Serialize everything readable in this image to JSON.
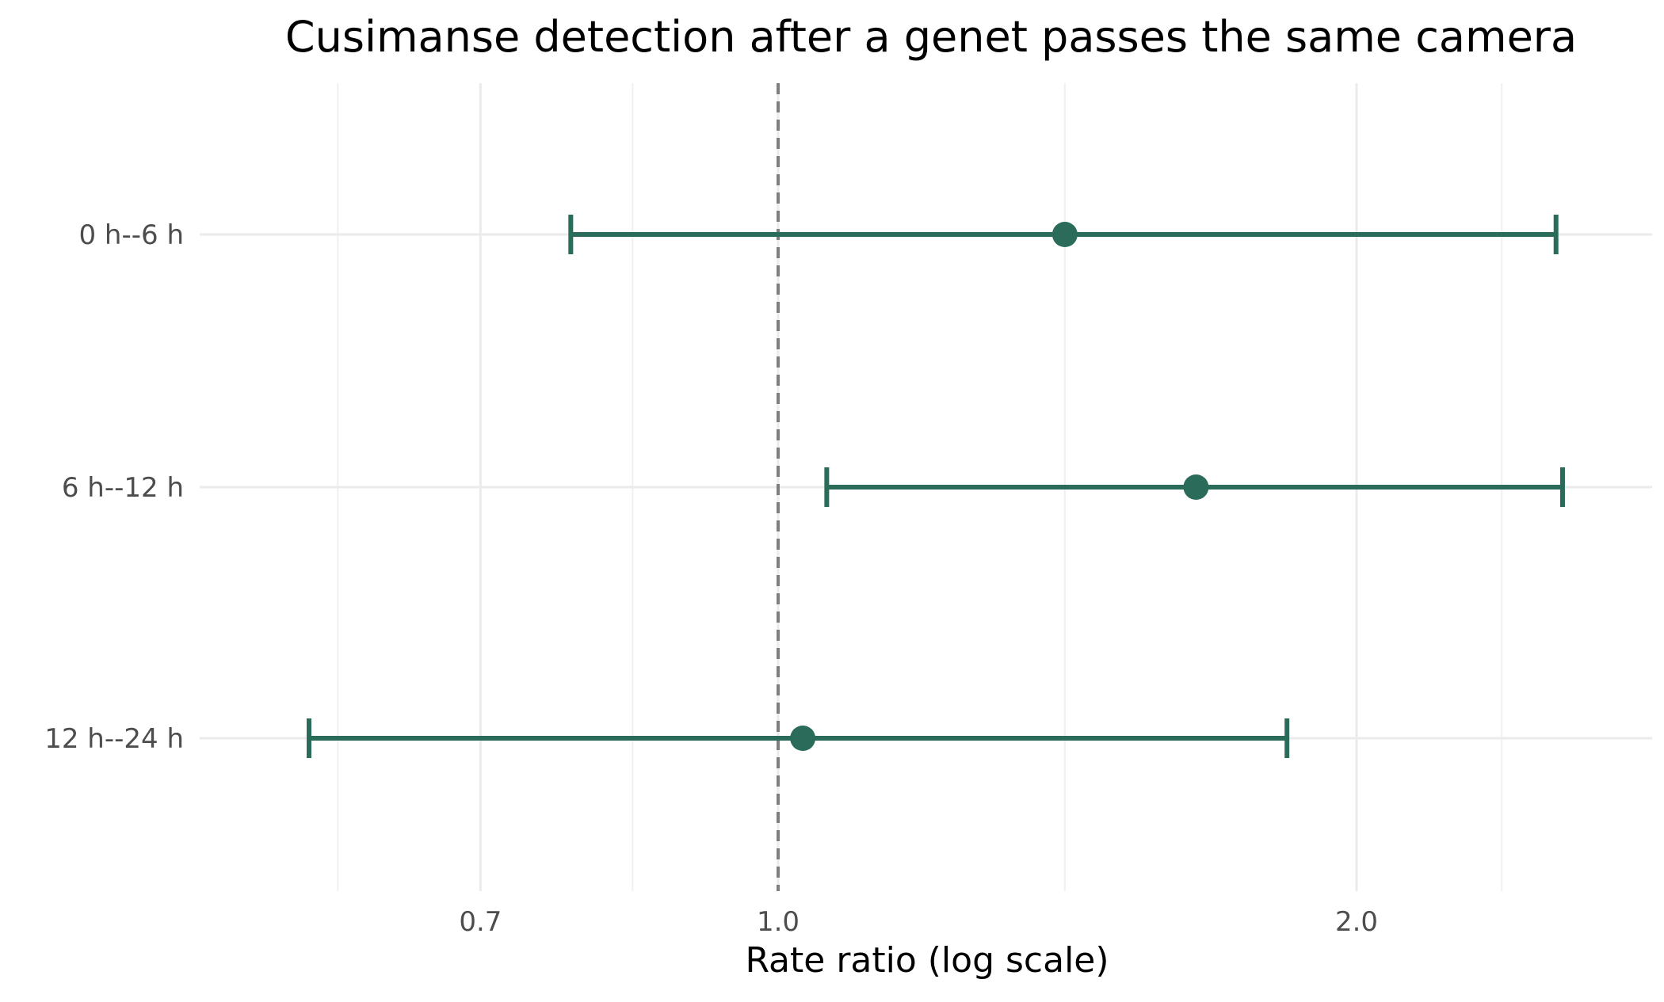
{
  "chart_data": {
    "type": "forest",
    "title": "Cusimanse detection after a genet passes the same camera",
    "xlabel": "Rate ratio (log scale)",
    "ylabel": "",
    "x_scale": "log",
    "xlim": [
      0.5,
      2.85
    ],
    "x_ticks": [
      0.7,
      1.0,
      2.0
    ],
    "x_tick_labels": [
      "0.7",
      "1.0",
      "2.0"
    ],
    "x_minor_ticks": [
      0.59,
      0.84,
      1.41,
      2.38
    ],
    "reference_line": 1.0,
    "grid": true,
    "legend": "none",
    "color": "#2a6b5a",
    "categories": [
      "0 h--6 h",
      "6 h--12 h",
      "12 h--24 h"
    ],
    "estimates": [
      1.41,
      1.65,
      1.03
    ],
    "ci_lower": [
      0.78,
      1.06,
      0.57
    ],
    "ci_upper": [
      2.54,
      2.56,
      1.84
    ]
  }
}
